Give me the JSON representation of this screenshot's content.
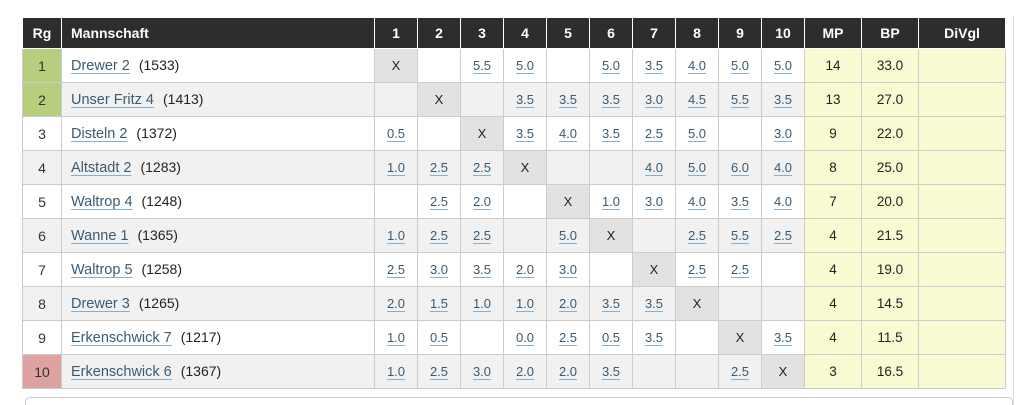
{
  "colors": {
    "header_bg": "#2d2d2d",
    "header_text": "#ffffff",
    "stripe": "#f1f1f1",
    "diagonal_bg": "#e2e2e2",
    "promo_green": "#b6ce7e",
    "releg_pink": "#dea2a2",
    "points_yellow": "#fafad2",
    "grid_border": "#cccccc",
    "link_text": "#3c5a70",
    "link_underline": "#86aecd",
    "text_dark": "#222222"
  },
  "table": {
    "headers": {
      "rank": "Rg",
      "team": "Mannschaft",
      "rounds": [
        "1",
        "2",
        "3",
        "4",
        "5",
        "6",
        "7",
        "8",
        "9",
        "10"
      ],
      "match_points": "MP",
      "board_points": "BP",
      "direct_comparison": "DiVgl"
    },
    "rows": [
      {
        "rank": "1",
        "highlight": "green",
        "team": "Drewer 2",
        "rating": "(1533)",
        "results": [
          "X",
          "",
          "5.5",
          "5.0",
          "",
          "5.0",
          "3.5",
          "4.0",
          "5.0",
          "5.0"
        ],
        "mp": "14",
        "bp": "33.0",
        "divgl": ""
      },
      {
        "rank": "2",
        "highlight": "green",
        "team": "Unser Fritz 4",
        "rating": "(1413)",
        "results": [
          "",
          "X",
          "",
          "3.5",
          "3.5",
          "3.5",
          "3.0",
          "4.5",
          "5.5",
          "3.5"
        ],
        "mp": "13",
        "bp": "27.0",
        "divgl": ""
      },
      {
        "rank": "3",
        "highlight": null,
        "team": "Disteln 2",
        "rating": "(1372)",
        "results": [
          "0.5",
          "",
          "X",
          "3.5",
          "4.0",
          "3.5",
          "2.5",
          "5.0",
          "",
          "3.0"
        ],
        "mp": "9",
        "bp": "22.0",
        "divgl": ""
      },
      {
        "rank": "4",
        "highlight": null,
        "team": "Altstadt 2",
        "rating": "(1283)",
        "results": [
          "1.0",
          "2.5",
          "2.5",
          "X",
          "",
          "",
          "4.0",
          "5.0",
          "6.0",
          "4.0"
        ],
        "mp": "8",
        "bp": "25.0",
        "divgl": ""
      },
      {
        "rank": "5",
        "highlight": null,
        "team": "Waltrop 4",
        "rating": "(1248)",
        "results": [
          "",
          "2.5",
          "2.0",
          "",
          "X",
          "1.0",
          "3.0",
          "4.0",
          "3.5",
          "4.0"
        ],
        "mp": "7",
        "bp": "20.0",
        "divgl": ""
      },
      {
        "rank": "6",
        "highlight": null,
        "team": "Wanne 1",
        "rating": "(1365)",
        "results": [
          "1.0",
          "2.5",
          "2.5",
          "",
          "5.0",
          "X",
          "",
          "2.5",
          "5.5",
          "2.5"
        ],
        "mp": "4",
        "bp": "21.5",
        "divgl": ""
      },
      {
        "rank": "7",
        "highlight": null,
        "team": "Waltrop 5",
        "rating": "(1258)",
        "results": [
          "2.5",
          "3.0",
          "3.5",
          "2.0",
          "3.0",
          "",
          "X",
          "2.5",
          "2.5",
          ""
        ],
        "mp": "4",
        "bp": "19.0",
        "divgl": ""
      },
      {
        "rank": "8",
        "highlight": null,
        "team": "Drewer 3",
        "rating": "(1265)",
        "results": [
          "2.0",
          "1.5",
          "1.0",
          "1.0",
          "2.0",
          "3.5",
          "3.5",
          "X",
          "",
          ""
        ],
        "mp": "4",
        "bp": "14.5",
        "divgl": ""
      },
      {
        "rank": "9",
        "highlight": null,
        "team": "Erkenschwick 7",
        "rating": "(1217)",
        "results": [
          "1.0",
          "0.5",
          "",
          "0.0",
          "2.5",
          "0.5",
          "3.5",
          "",
          "X",
          "3.5"
        ],
        "mp": "4",
        "bp": "11.5",
        "divgl": ""
      },
      {
        "rank": "10",
        "highlight": "pink",
        "team": "Erkenschwick 6",
        "rating": "(1367)",
        "results": [
          "1.0",
          "2.5",
          "3.0",
          "2.0",
          "2.0",
          "3.5",
          "",
          "",
          "2.5",
          "X"
        ],
        "mp": "3",
        "bp": "16.5",
        "divgl": ""
      }
    ]
  }
}
